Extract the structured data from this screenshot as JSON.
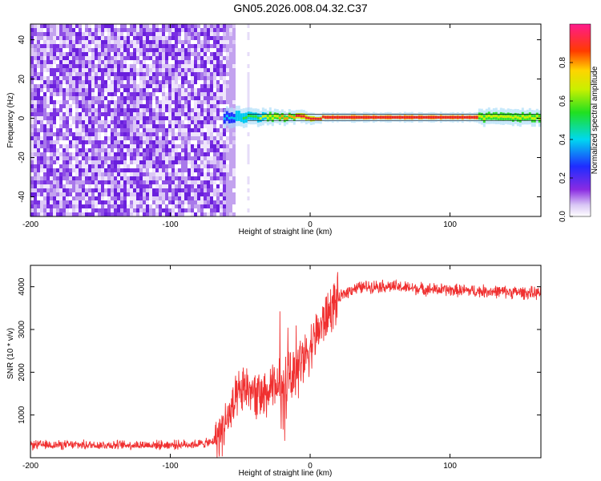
{
  "title": "GN05.2026.008.04.32.C37",
  "colors": {
    "snr_line": "#f03030",
    "noise": "#8a2be2",
    "ridge": "#d8262f"
  },
  "chart_data": [
    {
      "type": "heatmap",
      "xlabel": "Height of straight line (km)",
      "ylabel": "Frequency (Hz)",
      "xlim": [
        -200,
        165
      ],
      "ylim": [
        -50,
        48
      ],
      "xticks": [
        -200,
        -100,
        0,
        100
      ],
      "yticks": [
        -40,
        -20,
        0,
        20,
        40
      ],
      "colorbar": {
        "label": "Normalized spectral amplitude",
        "range": [
          0,
          1
        ],
        "ticks": [
          "0.0",
          "0.2",
          "0.4",
          "0.6",
          "0.8"
        ],
        "colormap": "rainbow (white-violet-blue-cyan-green-yellow-orange-red-magenta)"
      },
      "features": {
        "noise_region_km": [
          -200,
          -60
        ],
        "signal_start_km": -62,
        "ridge_frequency_hz": 0.5,
        "peak_region_km": [
          10,
          120
        ]
      }
    },
    {
      "type": "line",
      "xlabel": "Height of straight line (km)",
      "ylabel": "SNR (10 * v/v)",
      "xlim": [
        -200,
        165
      ],
      "ylim": [
        0,
        4500
      ],
      "xticks": [
        -200,
        -100,
        0,
        100
      ],
      "yticks": [
        1000,
        2000,
        3000,
        4000
      ],
      "series": [
        {
          "x": [
            -200,
            -180,
            -160,
            -140,
            -120,
            -100,
            -80,
            -70,
            -65,
            -60,
            -55,
            -50,
            -45,
            -40,
            -35,
            -30,
            -25,
            -20,
            -15,
            -10,
            -5,
            0,
            5,
            10,
            15,
            20,
            25,
            30,
            40,
            50,
            60,
            80,
            100,
            120,
            140,
            160,
            165
          ],
          "y": [
            300,
            300,
            300,
            300,
            300,
            300,
            320,
            360,
            550,
            850,
            1150,
            1500,
            1650,
            1500,
            1400,
            1500,
            1650,
            1800,
            1900,
            2100,
            2300,
            2600,
            2900,
            3200,
            3500,
            3700,
            3850,
            3950,
            4000,
            4020,
            4000,
            3950,
            3920,
            3900,
            3880,
            3850,
            3850
          ]
        }
      ]
    }
  ]
}
